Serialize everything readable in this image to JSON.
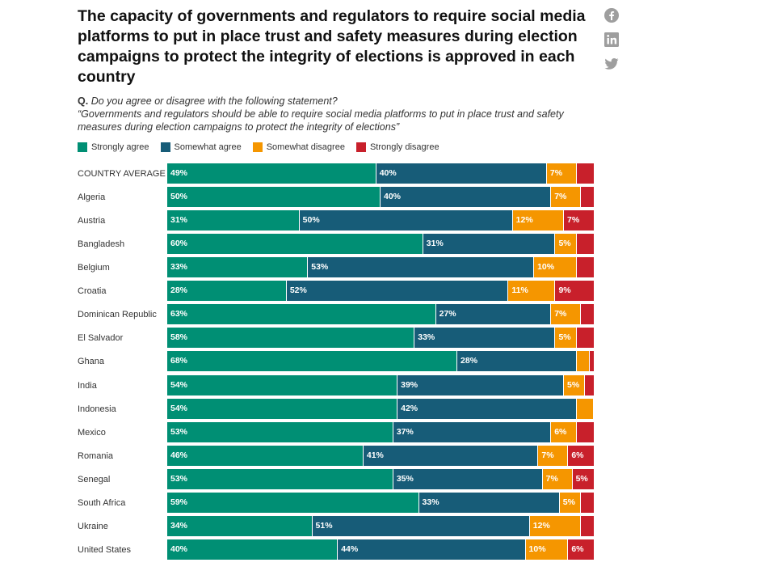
{
  "title": "The capacity of governments and regulators to require social media platforms to put in place trust and safety measures during election campaigns to protect the integrity of elections is approved in each country",
  "share": {
    "facebook_icon": "facebook-icon",
    "linkedin_icon": "linkedin-icon",
    "twitter_icon": "twitter-icon",
    "icon_color": "#9e9e9e"
  },
  "question": {
    "label": "Q.",
    "text": "Do you agree or disagree with the following statement?",
    "statement": "“Governments and regulators should be able to require social media platforms to put in place trust and safety measures during election campaigns to protect the integrity of elections”"
  },
  "chart_data": {
    "type": "bar",
    "orientation": "horizontal",
    "stacked": true,
    "normalized_to": 100,
    "categories": [
      "COUNTRY AVERAGE",
      "Algeria",
      "Austria",
      "Bangladesh",
      "Belgium",
      "Croatia",
      "Dominican Republic",
      "El Salvador",
      "Ghana",
      "India",
      "Indonesia",
      "Mexico",
      "Romania",
      "Senegal",
      "South Africa",
      "Ukraine",
      "United States"
    ],
    "series": [
      {
        "name": "Strongly agree",
        "color": "#008f74",
        "values": [
          49,
          50,
          31,
          60,
          33,
          28,
          63,
          58,
          68,
          54,
          54,
          53,
          46,
          53,
          59,
          34,
          40
        ]
      },
      {
        "name": "Somewhat agree",
        "color": "#175c78",
        "values": [
          40,
          40,
          50,
          31,
          53,
          52,
          27,
          33,
          28,
          39,
          42,
          37,
          41,
          35,
          33,
          51,
          44
        ]
      },
      {
        "name": "Somewhat disagree",
        "color": "#f59600",
        "values": [
          7,
          7,
          12,
          5,
          10,
          11,
          7,
          5,
          3,
          5,
          4,
          6,
          7,
          7,
          5,
          12,
          10
        ]
      },
      {
        "name": "Strongly disagree",
        "color": "#c8202b",
        "values": [
          4,
          3,
          7,
          4,
          4,
          9,
          3,
          4,
          1,
          2,
          0,
          4,
          6,
          5,
          3,
          3,
          6
        ]
      }
    ],
    "labels": [
      [
        "49%",
        "40%",
        "7%",
        ""
      ],
      [
        "50%",
        "40%",
        "7%",
        ""
      ],
      [
        "31%",
        "50%",
        "12%",
        "7%"
      ],
      [
        "60%",
        "31%",
        "5%",
        ""
      ],
      [
        "33%",
        "53%",
        "10%",
        ""
      ],
      [
        "28%",
        "52%",
        "11%",
        "9%"
      ],
      [
        "63%",
        "27%",
        "7%",
        ""
      ],
      [
        "58%",
        "33%",
        "5%",
        ""
      ],
      [
        "68%",
        "28%",
        "",
        ""
      ],
      [
        "54%",
        "39%",
        "5%",
        ""
      ],
      [
        "54%",
        "42%",
        "",
        ""
      ],
      [
        "53%",
        "37%",
        "6%",
        ""
      ],
      [
        "46%",
        "41%",
        "7%",
        "6%"
      ],
      [
        "53%",
        "35%",
        "7%",
        "5%"
      ],
      [
        "59%",
        "33%",
        "5%",
        ""
      ],
      [
        "34%",
        "51%",
        "12%",
        ""
      ],
      [
        "40%",
        "44%",
        "10%",
        "6%"
      ]
    ]
  }
}
